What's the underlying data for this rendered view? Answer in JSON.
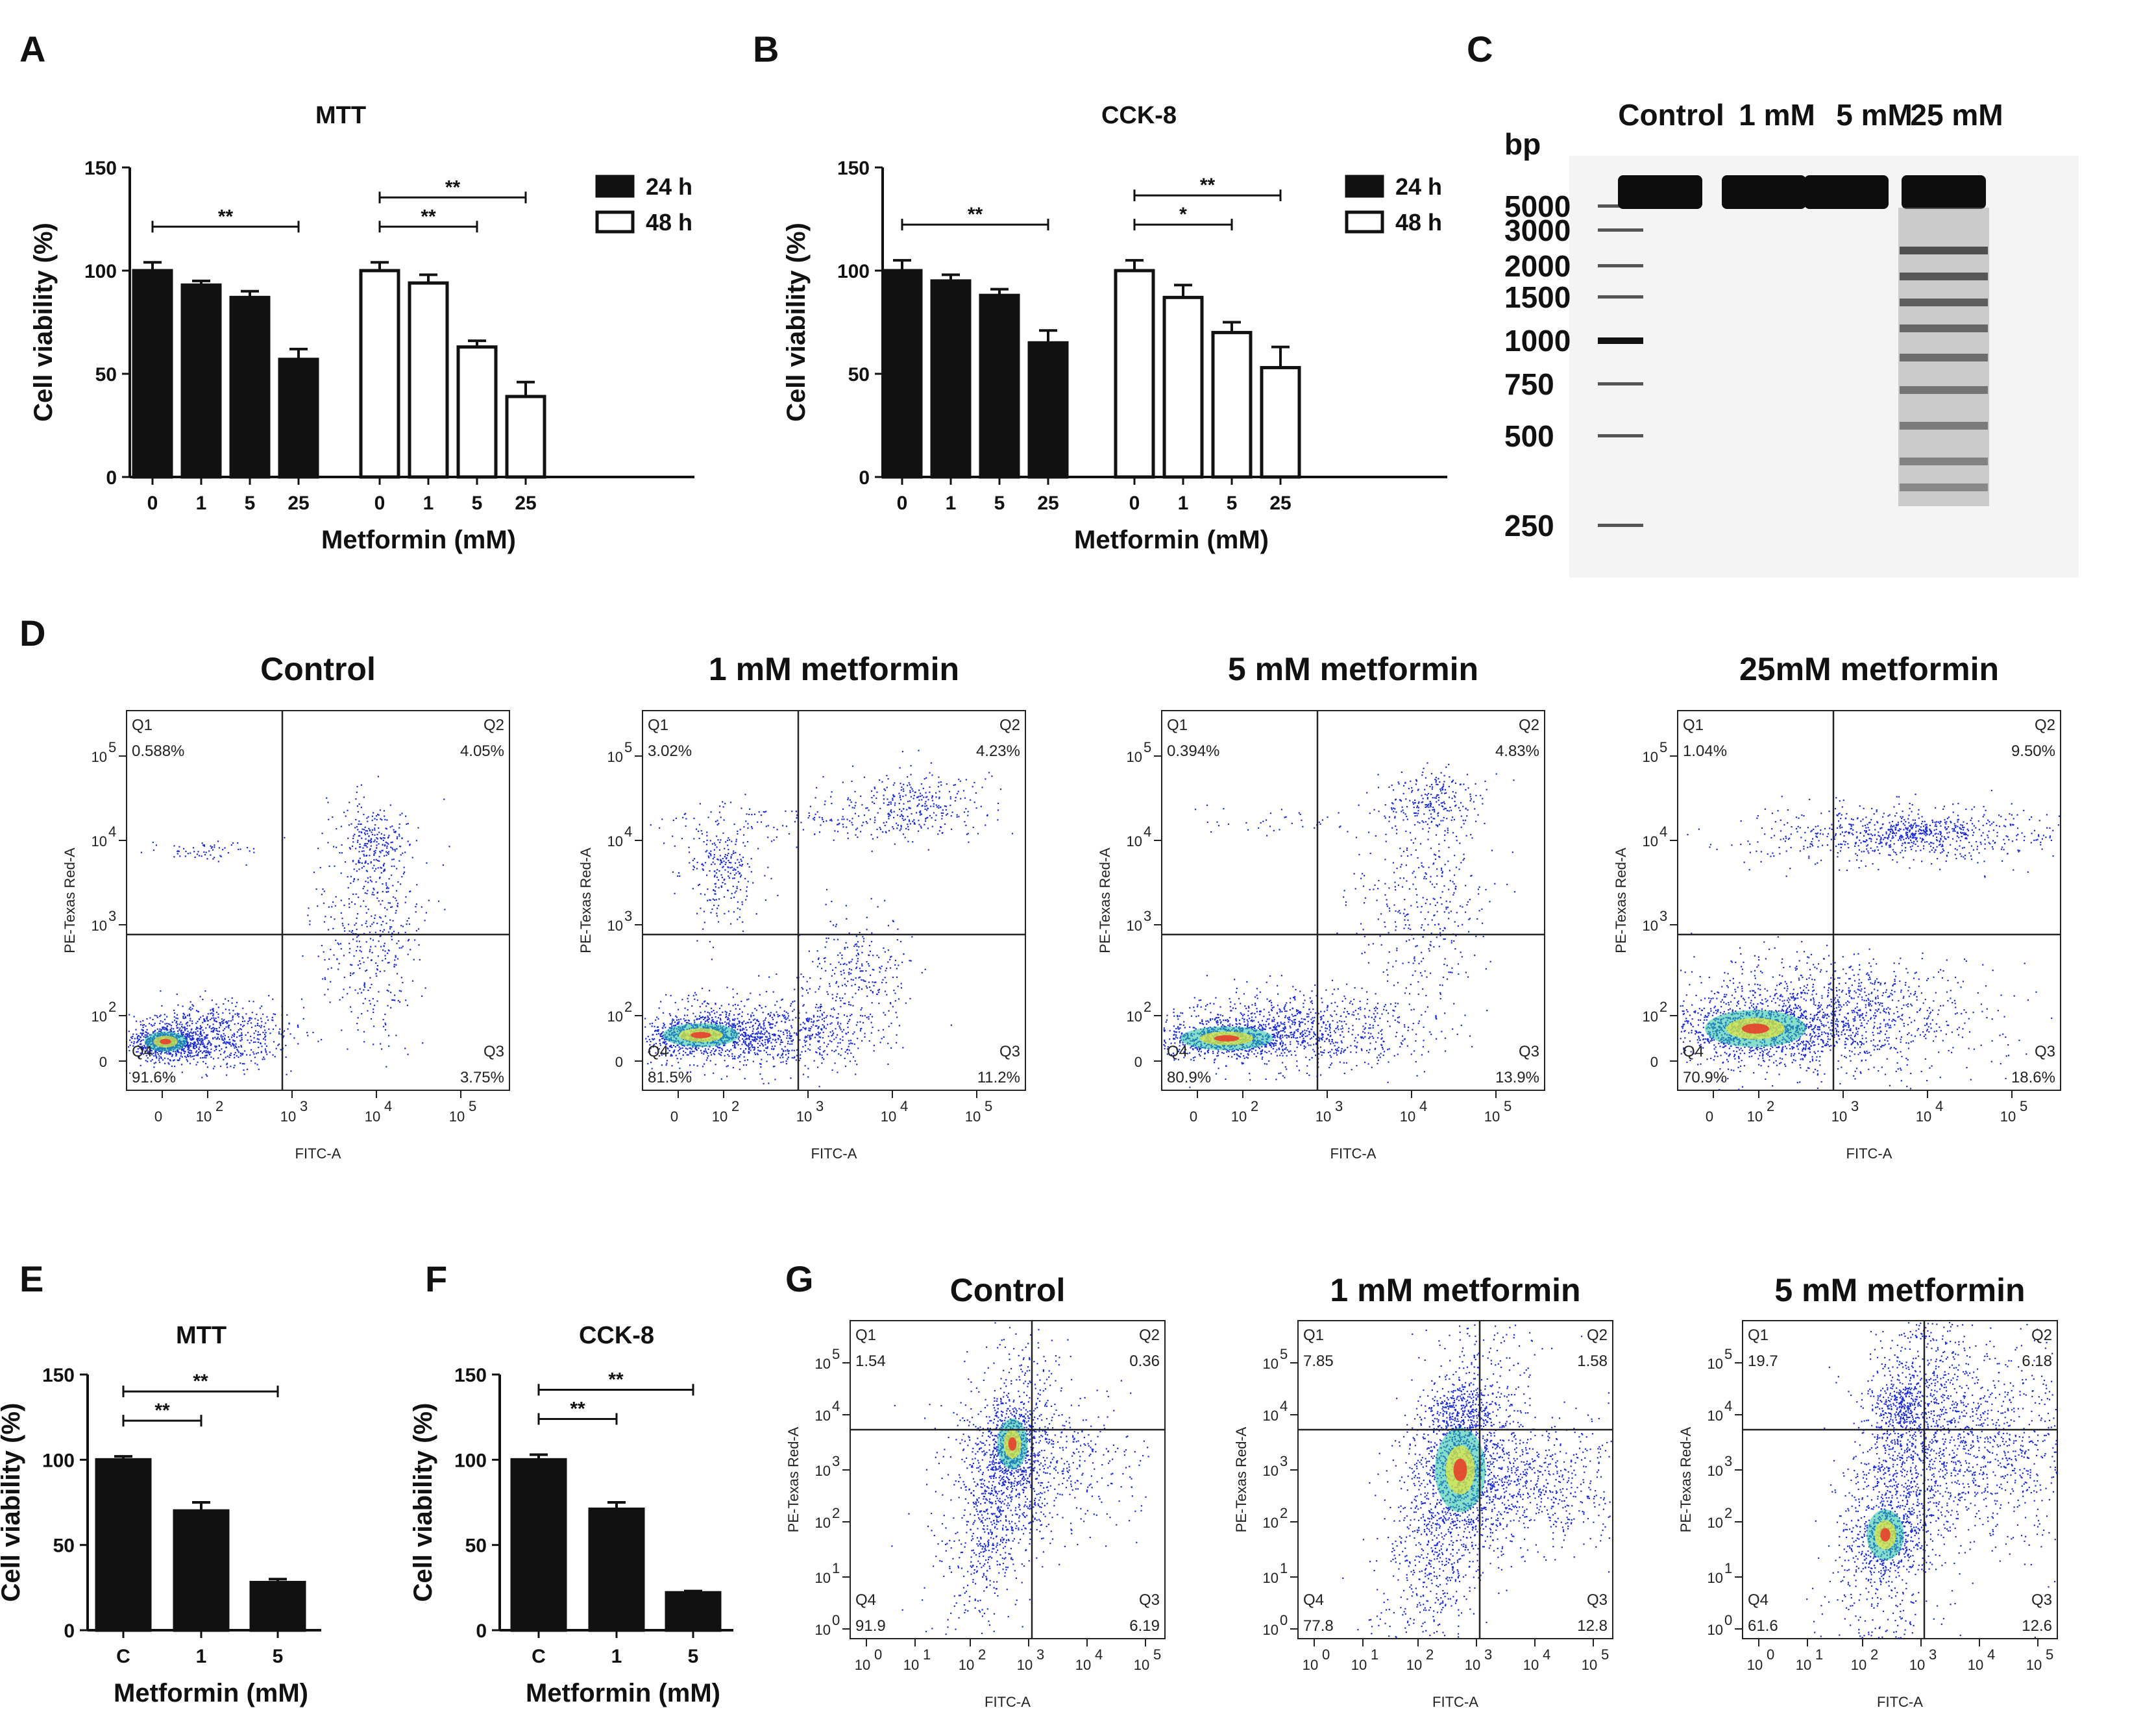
{
  "panel_labels": {
    "A": "A",
    "B": "B",
    "C": "C",
    "D": "D",
    "E": "E",
    "F": "F",
    "G": "G"
  },
  "colors": {
    "black": "#111111",
    "white": "#ffffff",
    "dot": "#1a2bd6"
  },
  "chart_data": [
    {
      "id": "A",
      "type": "bar",
      "title": "MTT",
      "xlabel": "Metformin (mM)",
      "ylabel": "Cell viability (%)",
      "ylim": [
        0,
        150
      ],
      "yticks": [
        "0",
        "50",
        "100",
        "150"
      ],
      "categories": [
        "0",
        "1",
        "5",
        "25"
      ],
      "series": [
        {
          "name": "24 h",
          "fill": "black",
          "values": [
            100,
            93,
            87,
            57
          ],
          "errors": [
            4,
            2,
            3,
            5
          ]
        },
        {
          "name": "48 h",
          "fill": "white",
          "values": [
            100,
            94,
            63,
            39
          ],
          "errors": [
            4,
            4,
            3,
            7
          ]
        }
      ],
      "legend": [
        "24 h",
        "48 h"
      ],
      "significance": [
        {
          "series": 0,
          "from": 0,
          "to": 3,
          "label": "**"
        },
        {
          "series": 1,
          "from": 0,
          "to": 2,
          "label": "**"
        },
        {
          "series": 1,
          "from": 0,
          "to": 3,
          "label": "**"
        }
      ]
    },
    {
      "id": "B",
      "type": "bar",
      "title": "CCK-8",
      "xlabel": "Metformin (mM)",
      "ylabel": "Cell viability (%)",
      "ylim": [
        0,
        150
      ],
      "yticks": [
        "0",
        "50",
        "100",
        "150"
      ],
      "categories": [
        "0",
        "1",
        "5",
        "25"
      ],
      "series": [
        {
          "name": "24 h",
          "fill": "black",
          "values": [
            100,
            95,
            88,
            65
          ],
          "errors": [
            5,
            3,
            3,
            6
          ]
        },
        {
          "name": "48 h",
          "fill": "white",
          "values": [
            100,
            87,
            70,
            53
          ],
          "errors": [
            5,
            6,
            5,
            10
          ]
        }
      ],
      "legend": [
        "24 h",
        "48 h"
      ],
      "significance": [
        {
          "series": 0,
          "from": 0,
          "to": 3,
          "label": "**"
        },
        {
          "series": 1,
          "from": 0,
          "to": 2,
          "label": "*"
        },
        {
          "series": 1,
          "from": 0,
          "to": 3,
          "label": "**"
        }
      ]
    },
    {
      "id": "E",
      "type": "bar",
      "title": "MTT",
      "xlabel": "Metformin (mM)",
      "ylabel": "Cell viability (%)",
      "ylim": [
        0,
        150
      ],
      "yticks": [
        "0",
        "50",
        "100",
        "150"
      ],
      "categories": [
        "C",
        "1",
        "5"
      ],
      "series": [
        {
          "name": "viability",
          "fill": "black",
          "values": [
            100,
            70,
            28
          ],
          "errors": [
            2,
            5,
            2
          ]
        }
      ],
      "significance": [
        {
          "series": 0,
          "from": 0,
          "to": 1,
          "label": "**"
        },
        {
          "series": 0,
          "from": 0,
          "to": 2,
          "label": "**"
        }
      ]
    },
    {
      "id": "F",
      "type": "bar",
      "title": "CCK-8",
      "xlabel": "Metformin (mM)",
      "ylabel": "Cell viability (%)",
      "ylim": [
        0,
        150
      ],
      "yticks": [
        "0",
        "50",
        "100",
        "150"
      ],
      "categories": [
        "C",
        "1",
        "5"
      ],
      "series": [
        {
          "name": "viability",
          "fill": "black",
          "values": [
            100,
            71,
            22
          ],
          "errors": [
            3,
            4,
            1
          ]
        }
      ],
      "significance": [
        {
          "series": 0,
          "from": 0,
          "to": 1,
          "label": "**"
        },
        {
          "series": 0,
          "from": 0,
          "to": 2,
          "label": "**"
        }
      ]
    }
  ],
  "gel": {
    "unit_label": "bp",
    "lanes": [
      "Control",
      "1 mM",
      "5 mM",
      "25 mM"
    ],
    "ladder": [
      "5000",
      "3000",
      "2000",
      "1500",
      "1000",
      "750",
      "500",
      "250"
    ]
  },
  "flow_d": {
    "xlabel": "FITC-A",
    "ylabel": "PE-Texas Red-A",
    "xticks": [
      "0",
      "10",
      "10",
      "10",
      "10"
    ],
    "xexps": [
      "",
      "2",
      "3",
      "4",
      "5"
    ],
    "yticks": [
      "0",
      "10",
      "10",
      "10",
      "10"
    ],
    "yexps": [
      "",
      "2",
      "3",
      "4",
      "5"
    ],
    "plots": [
      {
        "title": "Control",
        "q1": "0.588%",
        "q2": "4.05%",
        "q3": "3.75%",
        "q4": "91.6%"
      },
      {
        "title": "1 mM metformin",
        "q1": "3.02%",
        "q2": "4.23%",
        "q3": "11.2%",
        "q4": "81.5%"
      },
      {
        "title": "5 mM metformin",
        "q1": "0.394%",
        "q2": "4.83%",
        "q3": "13.9%",
        "q4": "80.9%"
      },
      {
        "title": "25mM metformin",
        "q1": "1.04%",
        "q2": "9.50%",
        "q3": "18.6%",
        "q4": "70.9%"
      }
    ]
  },
  "flow_g": {
    "xlabel": "FITC-A",
    "ylabel": "PE-Texas Red-A",
    "xticks": [
      "10",
      "10",
      "10",
      "10",
      "10",
      "10"
    ],
    "xexps": [
      "0",
      "1",
      "2",
      "3",
      "4",
      "5"
    ],
    "yticks": [
      "10",
      "10",
      "10",
      "10",
      "10",
      "10"
    ],
    "yexps": [
      "0",
      "1",
      "2",
      "3",
      "4",
      "5"
    ],
    "plots": [
      {
        "title": "Control",
        "q1": "1.54",
        "q2": "0.36",
        "q3": "6.19",
        "q4": "91.9"
      },
      {
        "title": "1 mM metformin",
        "q1": "7.85",
        "q2": "1.58",
        "q3": "12.8",
        "q4": "77.8"
      },
      {
        "title": "5 mM metformin",
        "q1": "19.7",
        "q2": "6.18",
        "q3": "12.6",
        "q4": "61.6"
      }
    ]
  },
  "quadrant_names": {
    "q1": "Q1",
    "q2": "Q2",
    "q3": "Q3",
    "q4": "Q4"
  }
}
